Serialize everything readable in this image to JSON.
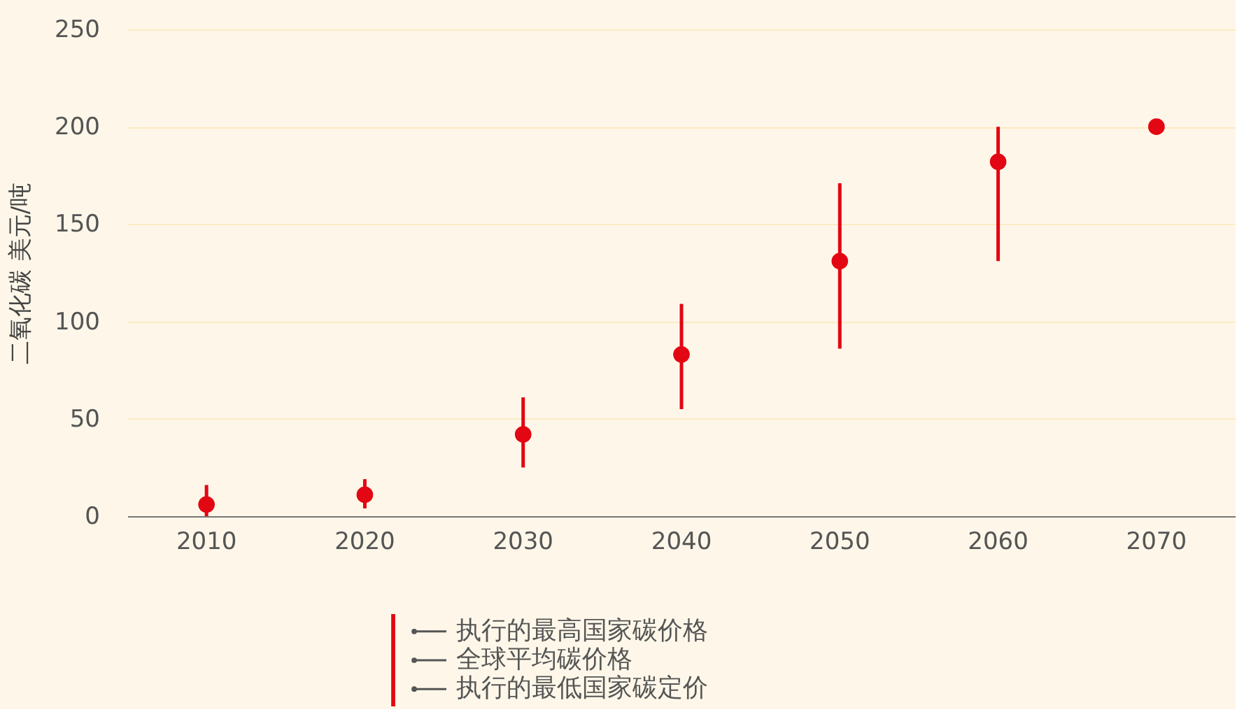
{
  "chart_data": {
    "type": "scatter",
    "ylabel": "二氧化碳 美元/吨",
    "categories": [
      "2010",
      "2020",
      "2030",
      "2040",
      "2050",
      "2060",
      "2070"
    ],
    "values": [
      6,
      11,
      42,
      83,
      131,
      182,
      200
    ],
    "errors": [
      [
        0,
        16
      ],
      [
        4,
        19
      ],
      [
        25,
        61
      ],
      [
        55,
        109
      ],
      [
        86,
        171
      ],
      [
        131,
        200
      ],
      [
        196,
        200
      ]
    ],
    "color": "#e30613",
    "marker": "circle",
    "grid": "y",
    "ylim": [
      0,
      250
    ],
    "yticks": [
      0,
      50,
      100,
      150,
      200,
      250
    ],
    "annotations": [
      "执行的最高国家碳价格",
      "全球平均碳价格",
      "执行的最低国家碳定价"
    ]
  }
}
